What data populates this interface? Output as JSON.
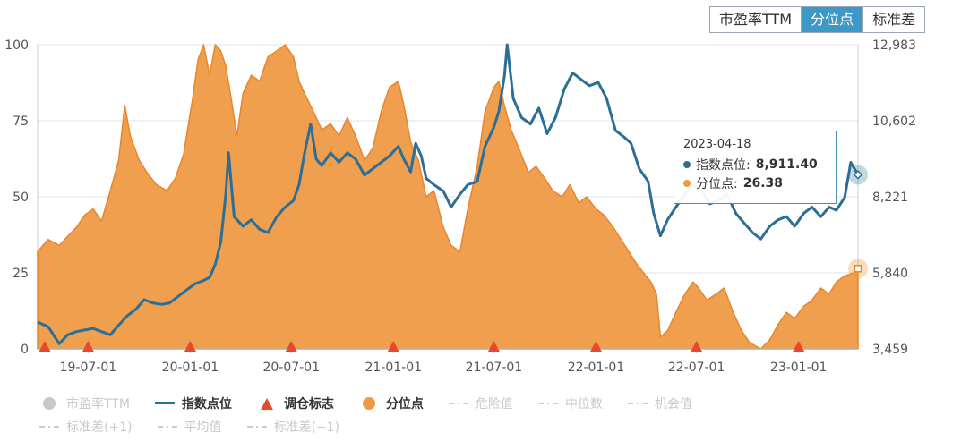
{
  "tabs": [
    {
      "label": "市盈率TTM",
      "active": false
    },
    {
      "label": "分位点",
      "active": true
    },
    {
      "label": "标准差",
      "active": false
    }
  ],
  "legend_rows": [
    [
      {
        "label": "市盈率TTM",
        "symbol": "circle",
        "color": "#c8c8c8",
        "active": false
      },
      {
        "label": "指数点位",
        "symbol": "line",
        "color": "#2c6e95",
        "active": true
      },
      {
        "label": "调仓标志",
        "symbol": "triangle",
        "color": "#e64a2e",
        "active": true
      },
      {
        "label": "分位点",
        "symbol": "circle",
        "color": "#ee9a44",
        "active": true
      },
      {
        "label": "危险值",
        "symbol": "dash",
        "color": "#cccccc",
        "active": false
      },
      {
        "label": "中位数",
        "symbol": "dash",
        "color": "#cccccc",
        "active": false
      },
      {
        "label": "机会值",
        "symbol": "dash",
        "color": "#cccccc",
        "active": false
      }
    ],
    [
      {
        "label": "标准差(+1)",
        "symbol": "dash",
        "color": "#cccccc",
        "active": false
      },
      {
        "label": "平均值",
        "symbol": "dash",
        "color": "#cccccc",
        "active": false
      },
      {
        "label": "标准差(−1)",
        "symbol": "dash",
        "color": "#cccccc",
        "active": false
      }
    ]
  ],
  "tooltip": {
    "date": "2023-04-18",
    "index_label": "指数点位:",
    "index_value": "8,911.40",
    "pct_label": "分位点:",
    "pct_value": "26.38"
  },
  "colors": {
    "index": "#2c6e95",
    "percentile": "#ee9a44",
    "rebalance": "#e64a2e",
    "tab_active": "#3d97c7"
  },
  "chart_data": {
    "type": "area",
    "x_range": [
      "2019-04-01",
      "2023-04-18"
    ],
    "x_ticks": [
      {
        "date": "2019-07-01",
        "label": "19-07-01"
      },
      {
        "date": "2020-01-01",
        "label": "20-01-01"
      },
      {
        "date": "2020-07-01",
        "label": "20-07-01"
      },
      {
        "date": "2021-01-01",
        "label": "21-01-01"
      },
      {
        "date": "2021-07-01",
        "label": "21-07-01"
      },
      {
        "date": "2022-01-01",
        "label": "22-01-01"
      },
      {
        "date": "2022-07-01",
        "label": "22-07-01"
      },
      {
        "date": "2023-01-01",
        "label": "23-01-01"
      }
    ],
    "y_left": {
      "range": [
        0,
        100
      ],
      "ticks": [
        "0",
        "25",
        "50",
        "75",
        "100"
      ]
    },
    "y_right": {
      "range": [
        3459,
        12983
      ],
      "ticks": [
        "3,459",
        "5,840",
        "8,221",
        "10,602",
        "12,983"
      ]
    },
    "grid": "horizontal",
    "series": [
      {
        "name": "分位点",
        "type": "area",
        "axis": "left",
        "points": [
          [
            "2019-04-01",
            32
          ],
          [
            "2019-04-20",
            36
          ],
          [
            "2019-05-10",
            34
          ],
          [
            "2019-05-25",
            37
          ],
          [
            "2019-06-10",
            40
          ],
          [
            "2019-06-25",
            44
          ],
          [
            "2019-07-10",
            46
          ],
          [
            "2019-07-25",
            42
          ],
          [
            "2019-08-10",
            52
          ],
          [
            "2019-08-25",
            62
          ],
          [
            "2019-09-05",
            80
          ],
          [
            "2019-09-15",
            70
          ],
          [
            "2019-10-01",
            62
          ],
          [
            "2019-10-15",
            58
          ],
          [
            "2019-11-01",
            54
          ],
          [
            "2019-11-20",
            52
          ],
          [
            "2019-12-05",
            56
          ],
          [
            "2019-12-20",
            64
          ],
          [
            "2020-01-05",
            82
          ],
          [
            "2020-01-15",
            95
          ],
          [
            "2020-01-25",
            100
          ],
          [
            "2020-02-05",
            90
          ],
          [
            "2020-02-15",
            100
          ],
          [
            "2020-02-25",
            98
          ],
          [
            "2020-03-05",
            93
          ],
          [
            "2020-03-15",
            82
          ],
          [
            "2020-03-25",
            70
          ],
          [
            "2020-04-05",
            84
          ],
          [
            "2020-04-20",
            90
          ],
          [
            "2020-05-05",
            88
          ],
          [
            "2020-05-20",
            96
          ],
          [
            "2020-06-05",
            98
          ],
          [
            "2020-06-20",
            100
          ],
          [
            "2020-07-05",
            96
          ],
          [
            "2020-07-15",
            88
          ],
          [
            "2020-07-25",
            84
          ],
          [
            "2020-08-10",
            78
          ],
          [
            "2020-08-25",
            72
          ],
          [
            "2020-09-10",
            74
          ],
          [
            "2020-09-25",
            70
          ],
          [
            "2020-10-10",
            76
          ],
          [
            "2020-10-25",
            70
          ],
          [
            "2020-11-10",
            62
          ],
          [
            "2020-11-25",
            66
          ],
          [
            "2020-12-10",
            78
          ],
          [
            "2020-12-25",
            86
          ],
          [
            "2021-01-10",
            88
          ],
          [
            "2021-01-20",
            80
          ],
          [
            "2021-02-01",
            68
          ],
          [
            "2021-02-15",
            62
          ],
          [
            "2021-03-01",
            50
          ],
          [
            "2021-03-15",
            52
          ],
          [
            "2021-04-01",
            40
          ],
          [
            "2021-04-15",
            34
          ],
          [
            "2021-05-01",
            32
          ],
          [
            "2021-05-15",
            46
          ],
          [
            "2021-06-01",
            60
          ],
          [
            "2021-06-15",
            78
          ],
          [
            "2021-07-01",
            86
          ],
          [
            "2021-07-10",
            88
          ],
          [
            "2021-07-20",
            80
          ],
          [
            "2021-08-01",
            72
          ],
          [
            "2021-08-15",
            66
          ],
          [
            "2021-09-01",
            58
          ],
          [
            "2021-09-15",
            60
          ],
          [
            "2021-10-01",
            56
          ],
          [
            "2021-10-15",
            52
          ],
          [
            "2021-11-01",
            50
          ],
          [
            "2021-11-15",
            54
          ],
          [
            "2021-12-01",
            48
          ],
          [
            "2021-12-15",
            50
          ],
          [
            "2022-01-01",
            46
          ],
          [
            "2022-01-15",
            44
          ],
          [
            "2022-02-01",
            40
          ],
          [
            "2022-02-15",
            36
          ],
          [
            "2022-03-01",
            32
          ],
          [
            "2022-03-15",
            28
          ],
          [
            "2022-04-01",
            24
          ],
          [
            "2022-04-10",
            22
          ],
          [
            "2022-04-20",
            18
          ],
          [
            "2022-04-27",
            4
          ],
          [
            "2022-05-10",
            6
          ],
          [
            "2022-05-25",
            12
          ],
          [
            "2022-06-10",
            18
          ],
          [
            "2022-06-25",
            22
          ],
          [
            "2022-07-05",
            20
          ],
          [
            "2022-07-20",
            16
          ],
          [
            "2022-08-05",
            18
          ],
          [
            "2022-08-20",
            20
          ],
          [
            "2022-09-05",
            12
          ],
          [
            "2022-09-20",
            6
          ],
          [
            "2022-10-05",
            2
          ],
          [
            "2022-10-25",
            0
          ],
          [
            "2022-11-10",
            3
          ],
          [
            "2022-11-25",
            8
          ],
          [
            "2022-12-10",
            12
          ],
          [
            "2022-12-25",
            10
          ],
          [
            "2023-01-10",
            14
          ],
          [
            "2023-01-25",
            16
          ],
          [
            "2023-02-10",
            20
          ],
          [
            "2023-02-25",
            18
          ],
          [
            "2023-03-10",
            22
          ],
          [
            "2023-03-25",
            24
          ],
          [
            "2023-04-10",
            25
          ],
          [
            "2023-04-18",
            26.38
          ]
        ]
      },
      {
        "name": "指数点位",
        "type": "line",
        "axis": "right",
        "points": [
          [
            "2019-04-01",
            4300
          ],
          [
            "2019-04-20",
            4150
          ],
          [
            "2019-05-10",
            3620
          ],
          [
            "2019-05-25",
            3900
          ],
          [
            "2019-06-10",
            4000
          ],
          [
            "2019-06-25",
            4050
          ],
          [
            "2019-07-10",
            4100
          ],
          [
            "2019-07-25",
            4000
          ],
          [
            "2019-08-10",
            3900
          ],
          [
            "2019-08-25",
            4200
          ],
          [
            "2019-09-10",
            4500
          ],
          [
            "2019-09-25",
            4700
          ],
          [
            "2019-10-10",
            5000
          ],
          [
            "2019-10-25",
            4900
          ],
          [
            "2019-11-10",
            4850
          ],
          [
            "2019-11-25",
            4900
          ],
          [
            "2019-12-10",
            5100
          ],
          [
            "2019-12-25",
            5300
          ],
          [
            "2020-01-10",
            5500
          ],
          [
            "2020-01-25",
            5600
          ],
          [
            "2020-02-05",
            5700
          ],
          [
            "2020-02-15",
            6100
          ],
          [
            "2020-02-25",
            6800
          ],
          [
            "2020-03-05",
            8300
          ],
          [
            "2020-03-10",
            9600
          ],
          [
            "2020-03-20",
            7600
          ],
          [
            "2020-04-05",
            7300
          ],
          [
            "2020-04-20",
            7500
          ],
          [
            "2020-05-05",
            7200
          ],
          [
            "2020-05-20",
            7100
          ],
          [
            "2020-06-05",
            7600
          ],
          [
            "2020-06-20",
            7900
          ],
          [
            "2020-07-05",
            8100
          ],
          [
            "2020-07-15",
            8600
          ],
          [
            "2020-07-25",
            9600
          ],
          [
            "2020-08-05",
            10500
          ],
          [
            "2020-08-15",
            9400
          ],
          [
            "2020-08-25",
            9200
          ],
          [
            "2020-09-10",
            9600
          ],
          [
            "2020-09-25",
            9300
          ],
          [
            "2020-10-10",
            9600
          ],
          [
            "2020-10-25",
            9400
          ],
          [
            "2020-11-10",
            8900
          ],
          [
            "2020-11-25",
            9100
          ],
          [
            "2020-12-10",
            9300
          ],
          [
            "2020-12-25",
            9500
          ],
          [
            "2021-01-10",
            9800
          ],
          [
            "2021-01-20",
            9400
          ],
          [
            "2021-02-01",
            9000
          ],
          [
            "2021-02-10",
            9900
          ],
          [
            "2021-02-20",
            9500
          ],
          [
            "2021-03-01",
            8800
          ],
          [
            "2021-03-15",
            8600
          ],
          [
            "2021-04-01",
            8400
          ],
          [
            "2021-04-15",
            7900
          ],
          [
            "2021-05-01",
            8300
          ],
          [
            "2021-05-15",
            8600
          ],
          [
            "2021-06-01",
            8700
          ],
          [
            "2021-06-15",
            9800
          ],
          [
            "2021-07-01",
            10400
          ],
          [
            "2021-07-10",
            10900
          ],
          [
            "2021-07-20",
            12000
          ],
          [
            "2021-07-25",
            12983
          ],
          [
            "2021-08-05",
            11300
          ],
          [
            "2021-08-20",
            10700
          ],
          [
            "2021-09-05",
            10500
          ],
          [
            "2021-09-20",
            11000
          ],
          [
            "2021-10-05",
            10200
          ],
          [
            "2021-10-20",
            10700
          ],
          [
            "2021-11-05",
            11600
          ],
          [
            "2021-11-20",
            12100
          ],
          [
            "2021-12-05",
            11900
          ],
          [
            "2021-12-20",
            11700
          ],
          [
            "2022-01-05",
            11800
          ],
          [
            "2022-01-20",
            11300
          ],
          [
            "2022-02-05",
            10300
          ],
          [
            "2022-02-20",
            10100
          ],
          [
            "2022-03-05",
            9900
          ],
          [
            "2022-03-20",
            9100
          ],
          [
            "2022-04-05",
            8700
          ],
          [
            "2022-04-15",
            7700
          ],
          [
            "2022-04-27",
            7000
          ],
          [
            "2022-05-10",
            7500
          ],
          [
            "2022-05-25",
            7900
          ],
          [
            "2022-06-10",
            8300
          ],
          [
            "2022-06-25",
            8600
          ],
          [
            "2022-07-10",
            8400
          ],
          [
            "2022-07-25",
            8000
          ],
          [
            "2022-08-10",
            8100
          ],
          [
            "2022-08-25",
            8300
          ],
          [
            "2022-09-10",
            7700
          ],
          [
            "2022-09-25",
            7400
          ],
          [
            "2022-10-10",
            7100
          ],
          [
            "2022-10-25",
            6900
          ],
          [
            "2022-11-10",
            7300
          ],
          [
            "2022-11-25",
            7500
          ],
          [
            "2022-12-10",
            7600
          ],
          [
            "2022-12-25",
            7300
          ],
          [
            "2023-01-10",
            7700
          ],
          [
            "2023-01-25",
            7900
          ],
          [
            "2023-02-10",
            7600
          ],
          [
            "2023-02-25",
            7900
          ],
          [
            "2023-03-10",
            7800
          ],
          [
            "2023-03-25",
            8200
          ],
          [
            "2023-04-05",
            9300
          ],
          [
            "2023-04-18",
            8911.4
          ]
        ]
      }
    ],
    "rebalance_markers": [
      "2019-04-01",
      "2019-07-01",
      "2020-01-01",
      "2020-07-01",
      "2021-01-01",
      "2021-07-01",
      "2022-01-01",
      "2022-07-01",
      "2023-01-01"
    ]
  }
}
